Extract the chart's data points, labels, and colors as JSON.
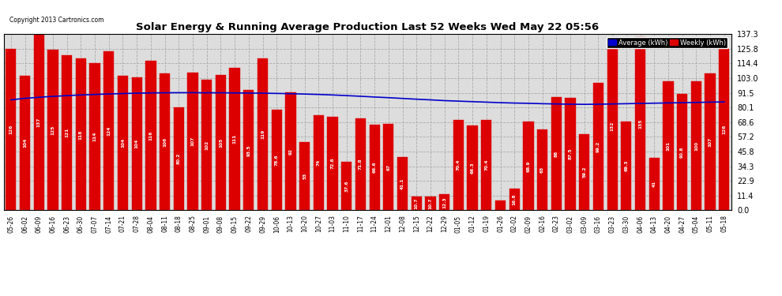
{
  "title": "Solar Energy & Running Average Production Last 52 Weeks Wed May 22 05:56",
  "copyright": "Copyright 2013 Cartronics.com",
  "bar_color": "#dd0000",
  "avg_line_color": "#0000cc",
  "background_color": "#ffffff",
  "plot_bg_color": "#dddddd",
  "grid_color": "#aaaaaa",
  "ylim": [
    0,
    137.3
  ],
  "yticks": [
    0.0,
    11.4,
    22.9,
    34.3,
    45.8,
    57.2,
    68.6,
    80.1,
    91.5,
    103.0,
    114.4,
    125.8,
    137.3
  ],
  "legend_avg_label": "Average (kWh)",
  "legend_weekly_label": "Weekly (kWh)",
  "legend_avg_color": "#0000cc",
  "legend_weekly_color": "#dd0000",
  "categories": [
    "05-26",
    "06-02",
    "06-09",
    "06-16",
    "06-23",
    "06-30",
    "07-07",
    "07-14",
    "07-21",
    "07-28",
    "08-04",
    "08-11",
    "08-18",
    "08-25",
    "09-01",
    "09-08",
    "09-15",
    "09-22",
    "09-29",
    "10-06",
    "10-13",
    "10-20",
    "10-27",
    "11-03",
    "11-10",
    "11-17",
    "11-24",
    "12-01",
    "12-08",
    "12-15",
    "12-22",
    "12-29",
    "01-05",
    "01-12",
    "01-19",
    "01-26",
    "02-02",
    "02-09",
    "02-16",
    "02-23",
    "03-02",
    "03-09",
    "03-16",
    "03-23",
    "03-30",
    "04-06",
    "04-13",
    "04-20",
    "04-27",
    "05-04",
    "05-11",
    "05-18"
  ],
  "weekly_values": [
    125.8,
    104.5,
    137.3,
    125.1,
    120.9,
    118.0,
    114.5,
    123.6,
    104.5,
    103.5,
    116.3,
    106.4,
    80.2,
    107.1,
    101.5,
    105.4,
    111.0,
    93.5,
    118.6,
    78.6,
    92.0,
    53.0,
    74.0,
    72.8,
    37.6,
    71.8,
    66.6,
    67.0,
    41.1,
    10.7,
    10.7,
    12.3,
    70.4,
    66.3,
    70.4,
    7.5,
    16.8,
    68.9,
    63.0,
    88.0,
    87.5,
    59.2,
    99.2,
    131.6,
    69.3,
    134.8,
    41.0,
    100.7,
    90.8,
    100.4,
    106.6,
    125.8
  ],
  "avg_values": [
    86.0,
    87.2,
    88.0,
    88.7,
    89.3,
    89.8,
    90.2,
    90.6,
    90.9,
    91.2,
    91.4,
    91.5,
    91.6,
    91.6,
    91.5,
    91.5,
    91.4,
    91.3,
    91.2,
    91.0,
    90.8,
    90.5,
    90.2,
    89.8,
    89.3,
    88.8,
    88.2,
    87.7,
    87.1,
    86.5,
    86.0,
    85.4,
    85.0,
    84.6,
    84.2,
    83.8,
    83.5,
    83.3,
    83.0,
    82.8,
    82.6,
    82.5,
    82.6,
    82.8,
    83.0,
    83.2,
    83.4,
    83.6,
    83.8,
    84.0,
    84.2,
    84.4
  ]
}
